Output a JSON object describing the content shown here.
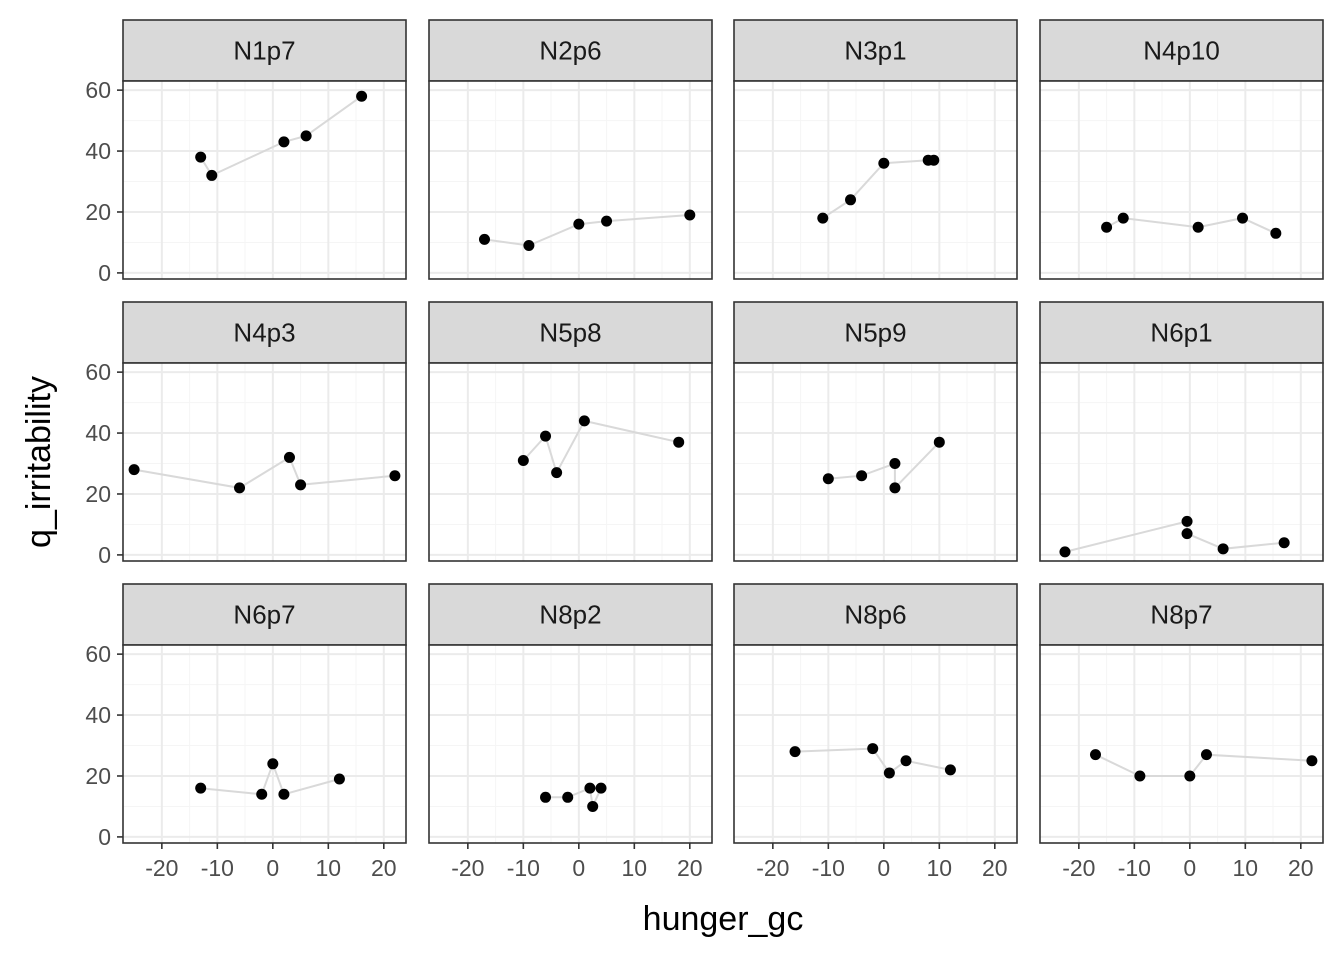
{
  "chart_data": {
    "type": "scatter",
    "layout": "facet-wrap",
    "connect_points": true,
    "xlabel": "hunger_gc",
    "ylabel": "q_irritability",
    "xlim": [
      -27,
      24
    ],
    "ylim": [
      -2,
      63
    ],
    "x_ticks": [
      -20,
      -10,
      0,
      10,
      20
    ],
    "x_tick_labels": [
      "-20",
      "-10",
      "0",
      "10",
      "20"
    ],
    "y_ticks": [
      0,
      20,
      40,
      60
    ],
    "y_tick_labels": [
      "0",
      "20",
      "40",
      "60"
    ],
    "grid": true,
    "colors": {
      "point": "#000000",
      "line": "#d9d9d9",
      "strip_fill": "#d9d9d9",
      "border": "#333333",
      "grid_major": "#ebebeb",
      "grid_minor": "#f5f5f5"
    },
    "panels": [
      {
        "label": "N1p7",
        "points": [
          [
            -13,
            38
          ],
          [
            -11,
            32
          ],
          [
            2,
            43
          ],
          [
            6,
            45
          ],
          [
            16,
            58
          ]
        ]
      },
      {
        "label": "N2p6",
        "points": [
          [
            -17,
            11
          ],
          [
            -9,
            9
          ],
          [
            0,
            16
          ],
          [
            5,
            17
          ],
          [
            20,
            19
          ]
        ]
      },
      {
        "label": "N3p1",
        "points": [
          [
            -11,
            18
          ],
          [
            -6,
            24
          ],
          [
            0,
            36
          ],
          [
            8,
            37
          ],
          [
            9,
            37
          ]
        ]
      },
      {
        "label": "N4p10",
        "points": [
          [
            -15,
            15
          ],
          [
            -12,
            18
          ],
          [
            1.5,
            15
          ],
          [
            9.5,
            18
          ],
          [
            15.5,
            13
          ]
        ]
      },
      {
        "label": "N4p3",
        "points": [
          [
            -25,
            28
          ],
          [
            -6,
            22
          ],
          [
            3,
            32
          ],
          [
            5,
            23
          ],
          [
            22,
            26
          ]
        ]
      },
      {
        "label": "N5p8",
        "points": [
          [
            -10,
            31
          ],
          [
            -6,
            39
          ],
          [
            -4,
            27
          ],
          [
            1,
            44
          ],
          [
            18,
            37
          ]
        ]
      },
      {
        "label": "N5p9",
        "points": [
          [
            -10,
            25
          ],
          [
            -4,
            26
          ],
          [
            2,
            30
          ],
          [
            2,
            22
          ],
          [
            10,
            37
          ]
        ]
      },
      {
        "label": "N6p1",
        "points": [
          [
            -22.5,
            1
          ],
          [
            -0.5,
            11
          ],
          [
            -0.5,
            7
          ],
          [
            6,
            2
          ],
          [
            17,
            4
          ]
        ]
      },
      {
        "label": "N6p7",
        "points": [
          [
            -13,
            16
          ],
          [
            -2,
            14
          ],
          [
            0,
            24
          ],
          [
            2,
            14
          ],
          [
            12,
            19
          ]
        ]
      },
      {
        "label": "N8p2",
        "points": [
          [
            -6,
            13
          ],
          [
            -2,
            13
          ],
          [
            2,
            16
          ],
          [
            2.5,
            10
          ],
          [
            4,
            16
          ]
        ]
      },
      {
        "label": "N8p6",
        "points": [
          [
            -16,
            28
          ],
          [
            -2,
            29
          ],
          [
            1,
            21
          ],
          [
            4,
            25
          ],
          [
            12,
            22
          ]
        ]
      },
      {
        "label": "N8p7",
        "points": [
          [
            -17,
            27
          ],
          [
            -9,
            20
          ],
          [
            0,
            20
          ],
          [
            3,
            27
          ],
          [
            22,
            25
          ]
        ]
      }
    ]
  }
}
